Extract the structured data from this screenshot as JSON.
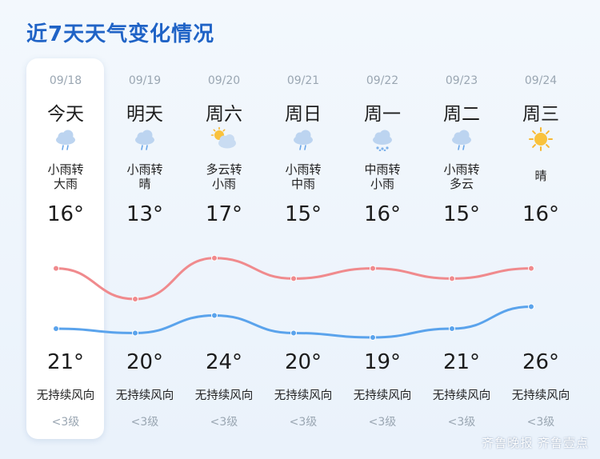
{
  "title": "近7天天气变化情况",
  "days": [
    {
      "date": "09/18",
      "day": "今天",
      "cond1": "小雨转",
      "cond2": "大雨",
      "high": "16°",
      "low": "21°",
      "wind": "无持续风向",
      "level": "<3级",
      "icon": "rain-cloud-icon",
      "high_value": 16,
      "low_value": 21
    },
    {
      "date": "09/19",
      "day": "明天",
      "cond1": "小雨转",
      "cond2": "晴",
      "high": "13°",
      "low": "20°",
      "wind": "无持续风向",
      "level": "<3级",
      "icon": "rain-cloud-icon",
      "high_value": 13,
      "low_value": 20
    },
    {
      "date": "09/20",
      "day": "周六",
      "cond1": "多云转",
      "cond2": "小雨",
      "high": "17°",
      "low": "24°",
      "wind": "无持续风向",
      "level": "<3级",
      "icon": "sun-cloud-icon",
      "high_value": 17,
      "low_value": 24
    },
    {
      "date": "09/21",
      "day": "周日",
      "cond1": "小雨转",
      "cond2": "中雨",
      "high": "15°",
      "low": "20°",
      "wind": "无持续风向",
      "level": "<3级",
      "icon": "rain-cloud-icon",
      "high_value": 15,
      "low_value": 20
    },
    {
      "date": "09/22",
      "day": "周一",
      "cond1": "中雨转",
      "cond2": "小雨",
      "high": "16°",
      "low": "19°",
      "wind": "无持续风向",
      "level": "<3级",
      "icon": "heavy-rain-cloud-icon",
      "high_value": 16,
      "low_value": 19
    },
    {
      "date": "09/23",
      "day": "周二",
      "cond1": "小雨转",
      "cond2": "多云",
      "high": "15°",
      "low": "21°",
      "wind": "无持续风向",
      "level": "<3级",
      "icon": "rain-cloud-icon",
      "high_value": 15,
      "low_value": 21
    },
    {
      "date": "09/24",
      "day": "周三",
      "cond1": "晴",
      "cond2": "",
      "high": "16°",
      "low": "26°",
      "wind": "无持续风向",
      "level": "<3级",
      "icon": "sun-icon",
      "high_value": 16,
      "low_value": 26
    }
  ],
  "colors": {
    "title": "#1f63c6",
    "upper_line": "#f08a8d",
    "lower_line": "#5aa3ec",
    "rain_cloud": "#a9c6ea",
    "sun": "#f7b733"
  },
  "watermark": "齐鲁晚报 齐鲁壹点"
}
